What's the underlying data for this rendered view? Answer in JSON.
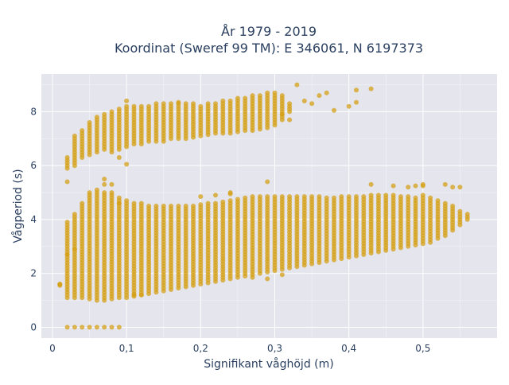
{
  "chart_data": {
    "type": "scatter",
    "title": [
      "År 1979 - 2019",
      "Koordinat (Sweref 99 TM): E 346061, N 6197373"
    ],
    "xlabel": "Signifikant våghöjd (m)",
    "ylabel": "Vågperiod (s)",
    "xlim": [
      -0.015,
      0.6
    ],
    "ylim": [
      -0.4,
      9.4
    ],
    "x_ticks": [
      {
        "value": 0,
        "label": "0"
      },
      {
        "value": 0.1,
        "label": "0,1"
      },
      {
        "value": 0.2,
        "label": "0,2"
      },
      {
        "value": 0.3,
        "label": "0,3"
      },
      {
        "value": 0.4,
        "label": "0,4"
      },
      {
        "value": 0.5,
        "label": "0,5"
      }
    ],
    "y_ticks": [
      {
        "value": 0,
        "label": "0"
      },
      {
        "value": 2,
        "label": "2"
      },
      {
        "value": 4,
        "label": "4"
      },
      {
        "value": 6,
        "label": "6"
      },
      {
        "value": 8,
        "label": "8"
      }
    ],
    "grid": true,
    "marker_color": "#d4a017",
    "plot_background": "#e5e5ee",
    "x_step": 0.01,
    "columns": [
      {
        "x": 0.01,
        "lower": [
          1.6,
          1.6
        ],
        "upper": null
      },
      {
        "x": 0.02,
        "lower": [
          1.1,
          3.9
        ],
        "upper": [
          5.9,
          6.3
        ]
      },
      {
        "x": 0.03,
        "lower": [
          1.1,
          4.2
        ],
        "upper": [
          6.0,
          7.1
        ]
      },
      {
        "x": 0.04,
        "lower": [
          1.1,
          4.6
        ],
        "upper": [
          6.3,
          7.3
        ]
      },
      {
        "x": 0.05,
        "lower": [
          1.05,
          5.0
        ],
        "upper": [
          6.4,
          7.6
        ]
      },
      {
        "x": 0.06,
        "lower": [
          1.0,
          5.1
        ],
        "upper": [
          6.5,
          7.8
        ]
      },
      {
        "x": 0.07,
        "lower": [
          1.0,
          5.0
        ],
        "upper": [
          6.6,
          7.9
        ]
      },
      {
        "x": 0.08,
        "lower": [
          1.05,
          4.9
        ],
        "upper": [
          6.5,
          8.0
        ]
      },
      {
        "x": 0.09,
        "lower": [
          1.1,
          4.8
        ],
        "upper": [
          6.6,
          8.1
        ]
      },
      {
        "x": 0.1,
        "lower": [
          1.1,
          4.7
        ],
        "upper": [
          6.7,
          8.2
        ]
      },
      {
        "x": 0.11,
        "lower": [
          1.15,
          4.6
        ],
        "upper": [
          6.8,
          8.2
        ]
      },
      {
        "x": 0.12,
        "lower": [
          1.2,
          4.6
        ],
        "upper": [
          6.8,
          8.2
        ]
      },
      {
        "x": 0.13,
        "lower": [
          1.25,
          4.5
        ],
        "upper": [
          6.9,
          8.2
        ]
      },
      {
        "x": 0.14,
        "lower": [
          1.3,
          4.5
        ],
        "upper": [
          6.9,
          8.3
        ]
      },
      {
        "x": 0.15,
        "lower": [
          1.35,
          4.5
        ],
        "upper": [
          6.9,
          8.3
        ]
      },
      {
        "x": 0.16,
        "lower": [
          1.4,
          4.5
        ],
        "upper": [
          7.0,
          8.3
        ]
      },
      {
        "x": 0.17,
        "lower": [
          1.45,
          4.5
        ],
        "upper": [
          7.0,
          8.3
        ]
      },
      {
        "x": 0.18,
        "lower": [
          1.5,
          4.5
        ],
        "upper": [
          7.0,
          8.3
        ]
      },
      {
        "x": 0.19,
        "lower": [
          1.55,
          4.5
        ],
        "upper": [
          7.05,
          8.3
        ]
      },
      {
        "x": 0.2,
        "lower": [
          1.6,
          4.55
        ],
        "upper": [
          7.1,
          8.2
        ]
      },
      {
        "x": 0.21,
        "lower": [
          1.65,
          4.6
        ],
        "upper": [
          7.15,
          8.3
        ]
      },
      {
        "x": 0.22,
        "lower": [
          1.7,
          4.6
        ],
        "upper": [
          7.2,
          8.3
        ]
      },
      {
        "x": 0.23,
        "lower": [
          1.75,
          4.65
        ],
        "upper": [
          7.2,
          8.4
        ]
      },
      {
        "x": 0.24,
        "lower": [
          1.8,
          4.7
        ],
        "upper": [
          7.2,
          8.4
        ]
      },
      {
        "x": 0.25,
        "lower": [
          1.85,
          4.75
        ],
        "upper": [
          7.25,
          8.5
        ]
      },
      {
        "x": 0.26,
        "lower": [
          1.9,
          4.8
        ],
        "upper": [
          7.3,
          8.5
        ]
      },
      {
        "x": 0.27,
        "lower": [
          1.95,
          4.85
        ],
        "upper": [
          7.3,
          8.6
        ]
      },
      {
        "x": 0.28,
        "lower": [
          2.0,
          4.85
        ],
        "upper": [
          7.35,
          8.6
        ]
      },
      {
        "x": 0.29,
        "lower": [
          2.05,
          4.85
        ],
        "upper": [
          7.4,
          8.7
        ]
      },
      {
        "x": 0.3,
        "lower": [
          2.1,
          4.85
        ],
        "upper": [
          7.5,
          8.7
        ]
      },
      {
        "x": 0.31,
        "lower": [
          2.15,
          4.85
        ],
        "upper": [
          7.7,
          8.6
        ]
      },
      {
        "x": 0.32,
        "lower": [
          2.2,
          4.85
        ],
        "upper": [
          8.0,
          8.3
        ]
      },
      {
        "x": 0.33,
        "lower": [
          2.25,
          4.85
        ],
        "upper": null
      },
      {
        "x": 0.34,
        "lower": [
          2.3,
          4.85
        ],
        "upper": null
      },
      {
        "x": 0.35,
        "lower": [
          2.35,
          4.85
        ],
        "upper": null
      },
      {
        "x": 0.36,
        "lower": [
          2.4,
          4.85
        ],
        "upper": null
      },
      {
        "x": 0.37,
        "lower": [
          2.45,
          4.8
        ],
        "upper": null
      },
      {
        "x": 0.38,
        "lower": [
          2.5,
          4.8
        ],
        "upper": null
      },
      {
        "x": 0.39,
        "lower": [
          2.55,
          4.85
        ],
        "upper": null
      },
      {
        "x": 0.4,
        "lower": [
          2.6,
          4.85
        ],
        "upper": null
      },
      {
        "x": 0.41,
        "lower": [
          2.65,
          4.85
        ],
        "upper": null
      },
      {
        "x": 0.42,
        "lower": [
          2.7,
          4.85
        ],
        "upper": null
      },
      {
        "x": 0.43,
        "lower": [
          2.75,
          4.9
        ],
        "upper": null
      },
      {
        "x": 0.44,
        "lower": [
          2.8,
          4.9
        ],
        "upper": null
      },
      {
        "x": 0.45,
        "lower": [
          2.85,
          4.9
        ],
        "upper": null
      },
      {
        "x": 0.46,
        "lower": [
          2.9,
          4.9
        ],
        "upper": null
      },
      {
        "x": 0.47,
        "lower": [
          2.95,
          4.85
        ],
        "upper": null
      },
      {
        "x": 0.48,
        "lower": [
          3.0,
          4.85
        ],
        "upper": null
      },
      {
        "x": 0.49,
        "lower": [
          3.05,
          4.8
        ],
        "upper": null
      },
      {
        "x": 0.5,
        "lower": [
          3.1,
          4.9
        ],
        "upper": null
      },
      {
        "x": 0.51,
        "lower": [
          3.15,
          4.8
        ],
        "upper": null
      },
      {
        "x": 0.52,
        "lower": [
          3.3,
          4.7
        ],
        "upper": null
      },
      {
        "x": 0.53,
        "lower": [
          3.4,
          4.6
        ],
        "upper": null
      },
      {
        "x": 0.54,
        "lower": [
          3.6,
          4.5
        ],
        "upper": null
      },
      {
        "x": 0.55,
        "lower": [
          3.8,
          4.3
        ],
        "upper": null
      },
      {
        "x": 0.56,
        "lower": [
          4.0,
          4.2
        ],
        "upper": null
      }
    ],
    "scattered_points": [
      {
        "x": 0.02,
        "y": 0
      },
      {
        "x": 0.03,
        "y": 0
      },
      {
        "x": 0.04,
        "y": 0
      },
      {
        "x": 0.05,
        "y": 0
      },
      {
        "x": 0.06,
        "y": 0
      },
      {
        "x": 0.07,
        "y": 0
      },
      {
        "x": 0.08,
        "y": 0
      },
      {
        "x": 0.09,
        "y": 0
      },
      {
        "x": 0.02,
        "y": 5.4
      },
      {
        "x": 0.07,
        "y": 5.5
      },
      {
        "x": 0.07,
        "y": 5.3
      },
      {
        "x": 0.08,
        "y": 5.3
      },
      {
        "x": 0.09,
        "y": 6.3
      },
      {
        "x": 0.1,
        "y": 6.05
      },
      {
        "x": 0.1,
        "y": 8.4
      },
      {
        "x": 0.03,
        "y": 2.9
      },
      {
        "x": 0.02,
        "y": 2.7
      },
      {
        "x": 0.08,
        "y": 5.0
      },
      {
        "x": 0.09,
        "y": 4.6
      },
      {
        "x": 0.17,
        "y": 8.35
      },
      {
        "x": 0.24,
        "y": 5.0
      },
      {
        "x": 0.29,
        "y": 5.4
      },
      {
        "x": 0.33,
        "y": 9.0
      },
      {
        "x": 0.35,
        "y": 8.3
      },
      {
        "x": 0.36,
        "y": 8.6
      },
      {
        "x": 0.37,
        "y": 8.7
      },
      {
        "x": 0.38,
        "y": 8.05
      },
      {
        "x": 0.4,
        "y": 8.2
      },
      {
        "x": 0.41,
        "y": 8.35
      },
      {
        "x": 0.41,
        "y": 8.8
      },
      {
        "x": 0.43,
        "y": 8.85
      },
      {
        "x": 0.43,
        "y": 5.3
      },
      {
        "x": 0.46,
        "y": 5.25
      },
      {
        "x": 0.48,
        "y": 5.2
      },
      {
        "x": 0.49,
        "y": 5.25
      },
      {
        "x": 0.5,
        "y": 5.3
      },
      {
        "x": 0.5,
        "y": 5.25
      },
      {
        "x": 0.53,
        "y": 5.3
      },
      {
        "x": 0.54,
        "y": 5.2
      },
      {
        "x": 0.55,
        "y": 5.2
      },
      {
        "x": 0.32,
        "y": 7.7
      },
      {
        "x": 0.31,
        "y": 7.9
      },
      {
        "x": 0.34,
        "y": 8.4
      },
      {
        "x": 0.31,
        "y": 1.95
      },
      {
        "x": 0.27,
        "y": 1.85
      },
      {
        "x": 0.29,
        "y": 1.8
      },
      {
        "x": 0.12,
        "y": 1.2
      },
      {
        "x": 0.11,
        "y": 1.2
      },
      {
        "x": 0.2,
        "y": 4.85
      },
      {
        "x": 0.22,
        "y": 4.9
      },
      {
        "x": 0.24,
        "y": 4.95
      },
      {
        "x": 0.01,
        "y": 1.55
      }
    ]
  }
}
